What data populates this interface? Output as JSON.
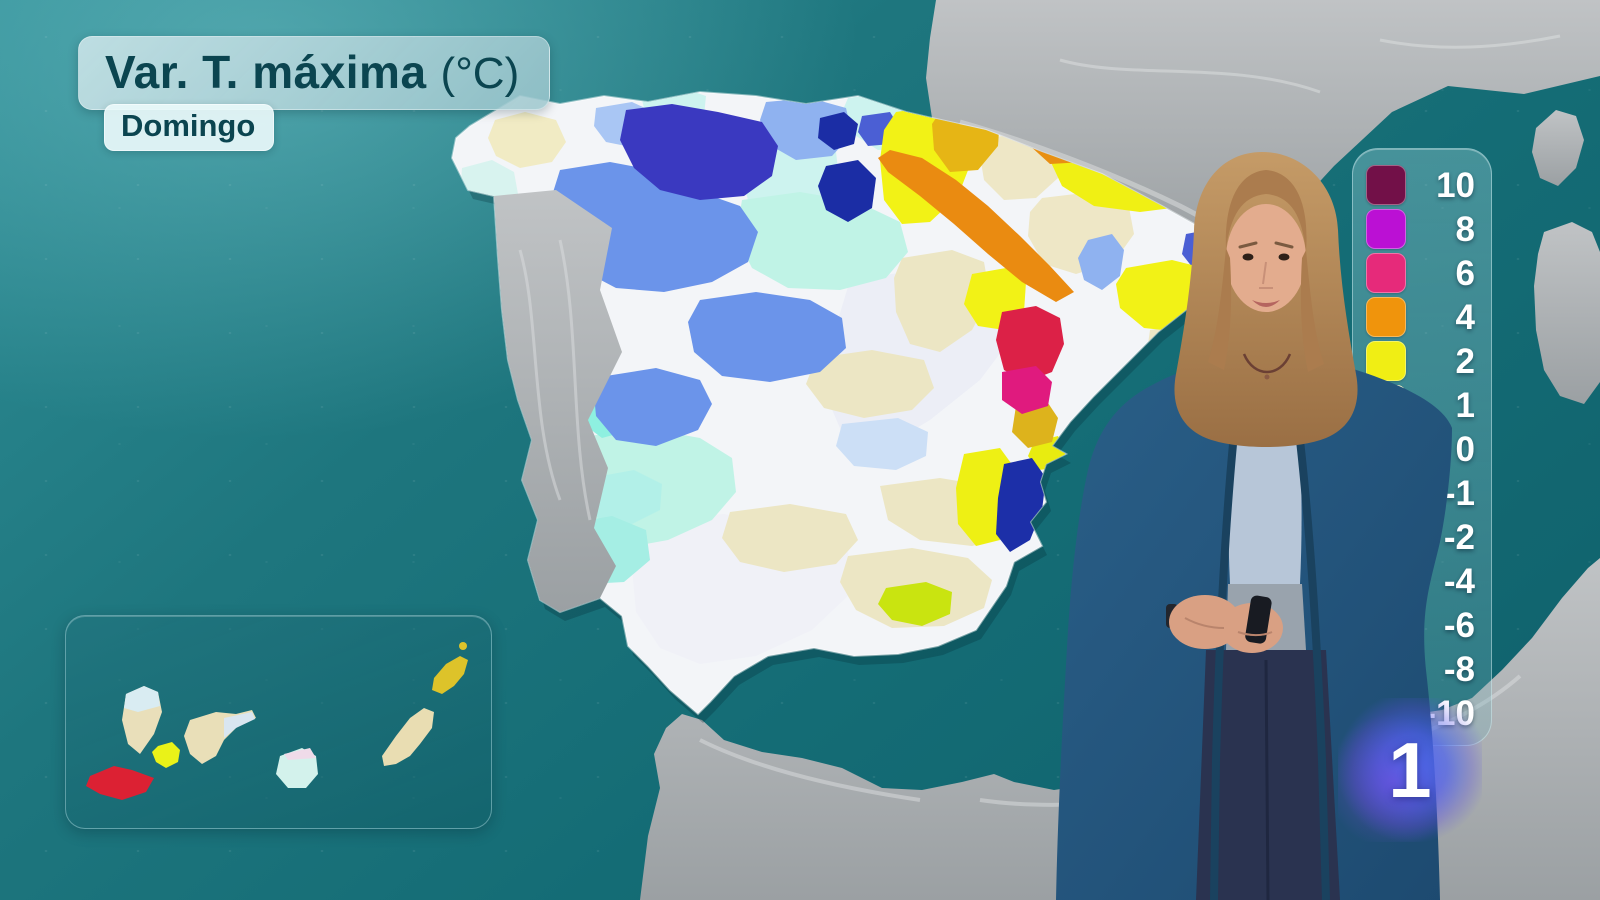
{
  "header": {
    "title": "Var. T. máxima",
    "unit": "(°C)",
    "day": "Domingo"
  },
  "legend": {
    "items": [
      {
        "label": "10",
        "color": "#721048"
      },
      {
        "label": "8",
        "color": "#bb10d4"
      },
      {
        "label": "6",
        "color": "#e62a7a"
      },
      {
        "label": "4",
        "color": "#f0940c"
      },
      {
        "label": "2",
        "color": "#f0ee14"
      },
      {
        "label": "1",
        "color": "#f8f4ac"
      },
      {
        "label": "0",
        "color": "#ffffff"
      },
      {
        "label": "-1",
        "color": "#dff0f8"
      },
      {
        "label": "-2",
        "color": "#a9ccf4"
      },
      {
        "label": "-4",
        "color": "#6b94ea"
      },
      {
        "label": "-6",
        "color": "#3a39c0"
      },
      {
        "label": "-8",
        "color": "#1b2da5"
      },
      {
        "label": "-10",
        "color": "#151c7e"
      }
    ]
  },
  "channel": {
    "logo_text": "1",
    "glow_color": "#4a68f2"
  },
  "map": {
    "sea_color": "#16717b",
    "neutral_land_color": "#a7abad"
  }
}
